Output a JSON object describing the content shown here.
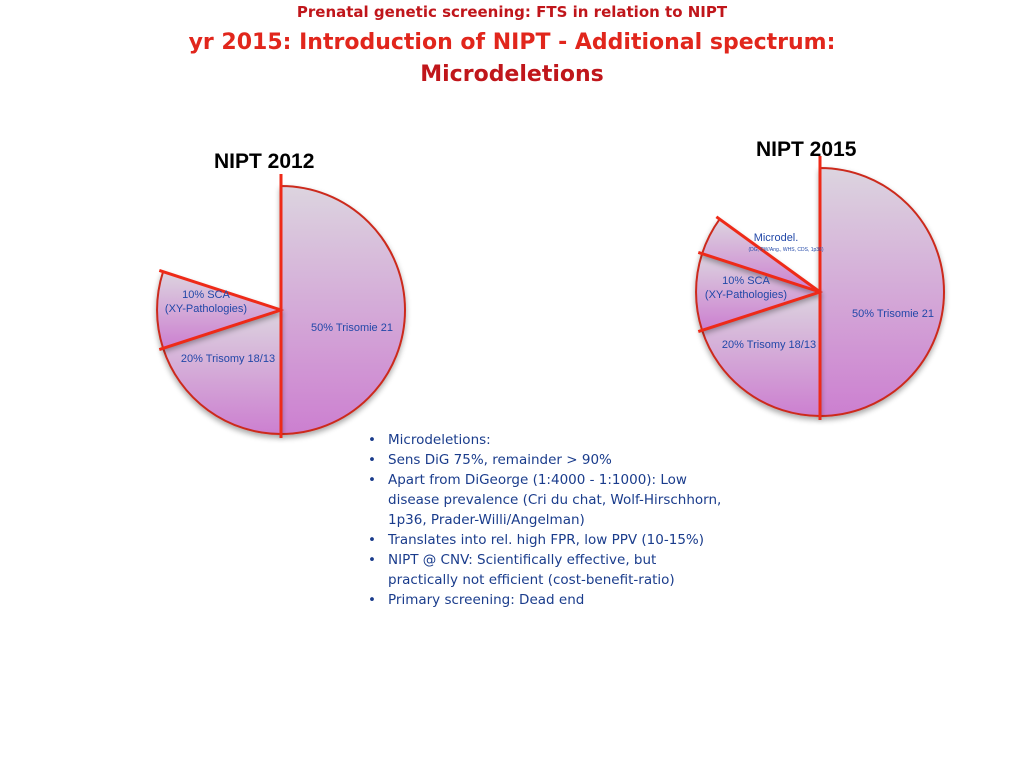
{
  "header": {
    "supertitle": "Prenatal genetic screening: FTS in relation to NIPT",
    "title_line1": "yr 2015: Introduction of NIPT - Additional spectrum:",
    "title_line2": "Microdeletions"
  },
  "colors": {
    "supertitle": "#c0161b",
    "title": "#e1261c",
    "slice_border": "#cc2a1e",
    "divider": "#ee2a18",
    "label": "#2248a8",
    "fill_top": "#dcd4df",
    "fill_bottom": "#cc7fd0"
  },
  "chart_data": [
    {
      "type": "pie",
      "title": "NIPT 2012",
      "slices": [
        {
          "label": "50% Trisomie 21",
          "value": 50
        },
        {
          "label": "20% Trisomy 18/13",
          "value": 20
        },
        {
          "label": "10% SCA\n(XY-Pathologies)",
          "value": 10
        }
      ]
    },
    {
      "type": "pie",
      "title": "NIPT 2015",
      "slices": [
        {
          "label": "50% Trisomie 21",
          "value": 50
        },
        {
          "label": "20% Trisomy 18/13",
          "value": 20
        },
        {
          "label": "10% SCA\n(XY-Pathologies)",
          "value": 10
        },
        {
          "label": "Microdel.",
          "sublabel": "(DG, PW/Ang., WHS, CDS, 1p36)",
          "value": 5
        }
      ]
    }
  ],
  "bullets": [
    "Microdeletions:",
    "Sens DiG 75%, remainder > 90%",
    "Apart from DiGeorge (1:4000 - 1:1000): Low disease prevalence (Cri du chat, Wolf-Hirschhorn, 1p36, Prader-Willi/Angelman)",
    "Translates into rel. high FPR, low PPV (10-15%)",
    "NIPT @ CNV: Scientifically effective, but practically not efficient (cost-benefit-ratio)",
    "Primary screening: Dead end"
  ],
  "bullet_glyph": "•"
}
